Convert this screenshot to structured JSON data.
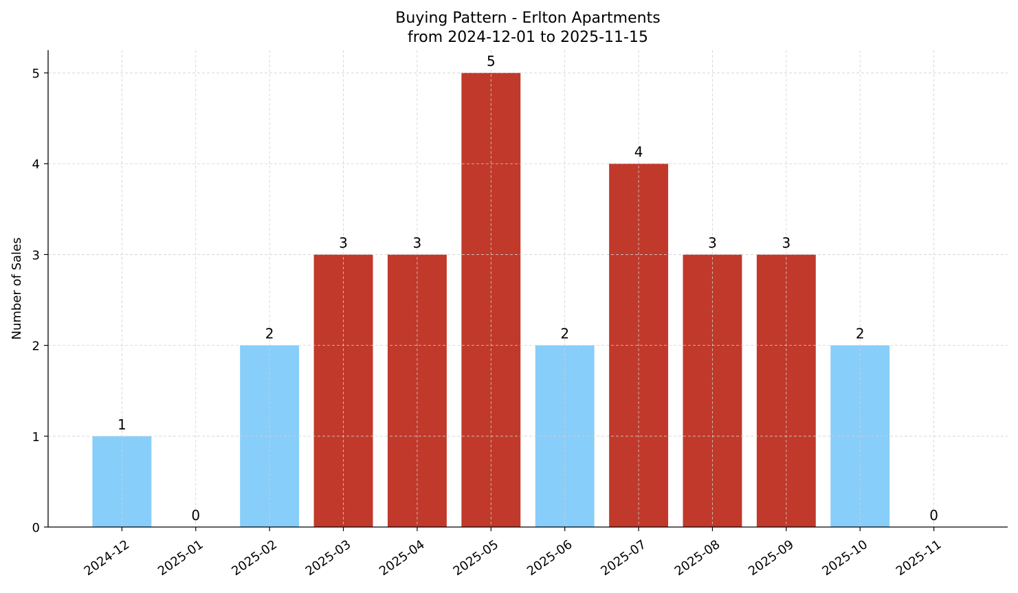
{
  "chart_data": {
    "type": "bar",
    "title": "Buying Pattern - Erlton Apartments",
    "subtitle": "from 2024-12-01 to 2025-11-15",
    "xlabel": "",
    "ylabel": "Number of Sales",
    "categories": [
      "2024-12",
      "2025-01",
      "2025-02",
      "2025-03",
      "2025-04",
      "2025-05",
      "2025-06",
      "2025-07",
      "2025-08",
      "2025-09",
      "2025-10",
      "2025-11"
    ],
    "values": [
      1,
      0,
      2,
      3,
      3,
      5,
      2,
      4,
      3,
      3,
      2,
      0
    ],
    "ylim": [
      0,
      5.25
    ],
    "yticks": [
      0,
      1,
      2,
      3,
      4,
      5
    ],
    "grid": true,
    "data_labels": true,
    "colors": {
      "low": "#87CEFA",
      "high": "#C0392B"
    },
    "highlight_rule": "values >= 3 shown in high color"
  }
}
